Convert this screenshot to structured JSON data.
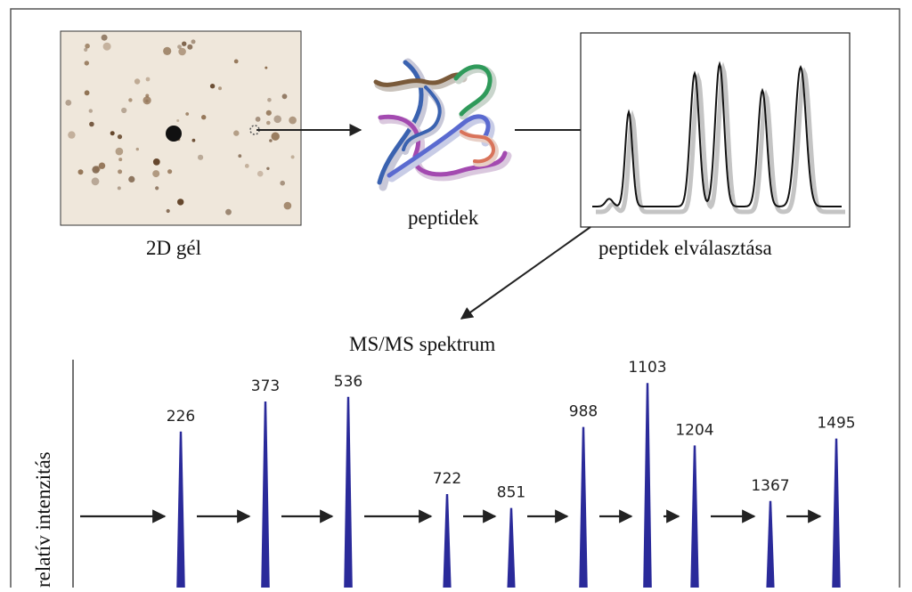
{
  "labels": {
    "gel": "2D gél",
    "peptides": "peptidek",
    "separation": "peptidek elválasztása",
    "msms": "MS/MS spektrum",
    "yaxis": "relatív intenzitás"
  },
  "colors": {
    "frame": "#555555",
    "arrow": "#222222",
    "peak": "#2a2a9a",
    "peptide_strands": [
      "#7a5a3a",
      "#3a62b0",
      "#2f9a5a",
      "#a34ab0",
      "#d9735a",
      "#5a6ad0"
    ]
  },
  "msms_peaks": [
    {
      "label": "226",
      "height": 0.72
    },
    {
      "label": "373",
      "height": 0.85
    },
    {
      "label": "536",
      "height": 0.87
    },
    {
      "label": "722",
      "height": 0.45
    },
    {
      "label": "851",
      "height": 0.39
    },
    {
      "label": "988",
      "height": 0.74
    },
    {
      "label": "1103",
      "height": 0.93
    },
    {
      "label": "1204",
      "height": 0.66
    },
    {
      "label": "1367",
      "height": 0.42
    },
    {
      "label": "1495",
      "height": 0.69
    }
  ],
  "chromatogram_peaks": [
    0.05,
    0.61,
    0.86,
    0.92,
    0.75,
    0.9
  ]
}
